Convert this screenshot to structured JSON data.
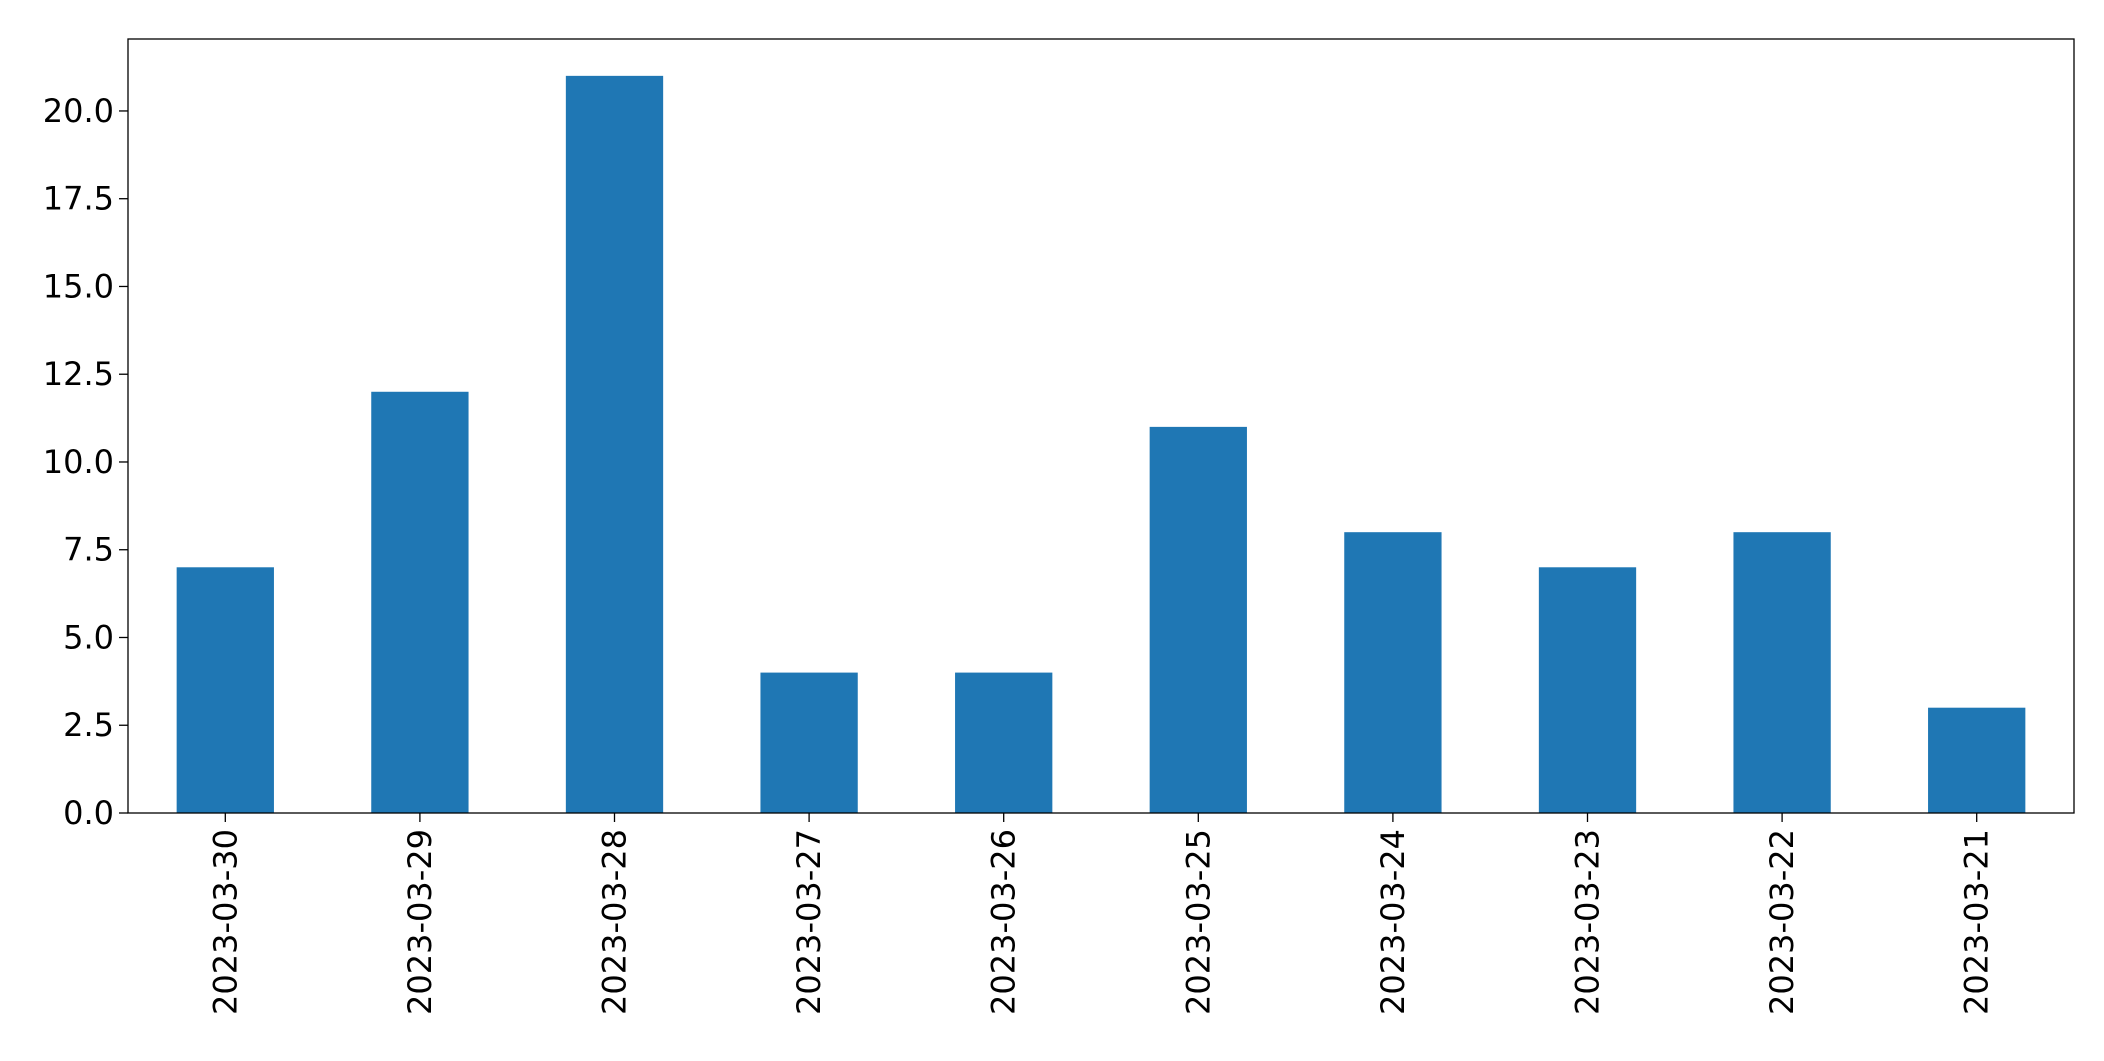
{
  "chart_data": {
    "type": "bar",
    "categories": [
      "2023-03-30",
      "2023-03-29",
      "2023-03-28",
      "2023-03-27",
      "2023-03-26",
      "2023-03-25",
      "2023-03-24",
      "2023-03-23",
      "2023-03-22",
      "2023-03-21"
    ],
    "values": [
      7,
      12,
      21,
      4,
      4,
      11,
      8,
      7,
      8,
      3
    ],
    "color": "#1f77b4",
    "ylim": [
      0,
      22.05
    ],
    "yticks": [
      {
        "value": 0,
        "label": "0.0"
      },
      {
        "value": 2.5,
        "label": "2.5"
      },
      {
        "value": 5,
        "label": "5.0"
      },
      {
        "value": 7.5,
        "label": "7.5"
      },
      {
        "value": 10,
        "label": "10.0"
      },
      {
        "value": 12.5,
        "label": "12.5"
      },
      {
        "value": 15,
        "label": "15.0"
      },
      {
        "value": 17.5,
        "label": "17.5"
      },
      {
        "value": 20,
        "label": "20.0"
      }
    ],
    "grid": false
  }
}
